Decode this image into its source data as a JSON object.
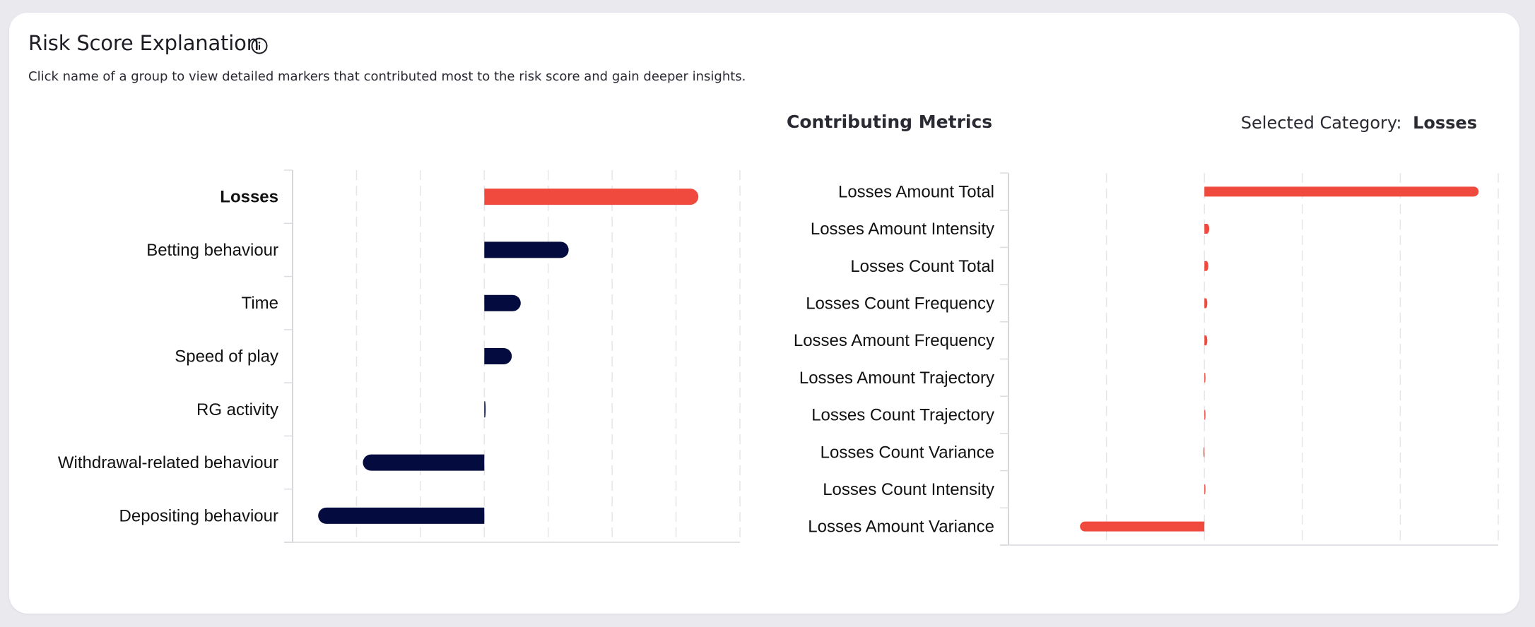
{
  "header": {
    "title": "Risk Score Explanation",
    "subtitle": "Click name of a group to view detailed markers that contributed most to the risk score and gain deeper insights."
  },
  "metrics_header": {
    "title": "Contributing Metrics",
    "selected_label": "Selected Category:",
    "selected_value": "Losses"
  },
  "colors": {
    "accent": "#ef4a3d",
    "navy": "#030b3f"
  },
  "chart_data": [
    {
      "type": "bar",
      "orientation": "horizontal",
      "title": "",
      "categories": [
        "Losses",
        "Betting behaviour",
        "Time",
        "Speed of play",
        "RG activity",
        "Withdrawal-related behaviour",
        "Depositing behaviour"
      ],
      "values": [
        3.35,
        1.32,
        0.57,
        0.43,
        0.02,
        -1.9,
        -2.6
      ],
      "xlim": [
        -3,
        4
      ],
      "selected": "Losses",
      "grid": true
    },
    {
      "type": "bar",
      "orientation": "horizontal",
      "title": "Contributing Metrics",
      "categories": [
        "Losses Amount Total",
        "Losses Amount Intensity",
        "Losses Count Total",
        "Losses Count Frequency",
        "Losses Amount Frequency",
        "Losses Amount Trajectory",
        "Losses Count Trajectory",
        "Losses Count Variance",
        "Losses Count Intensity",
        "Losses Amount Variance"
      ],
      "values": [
        2.8,
        0.05,
        0.04,
        0.03,
        0.03,
        0.01,
        0.0,
        -0.01,
        0.0,
        -1.27
      ],
      "xlim": [
        -2,
        3
      ],
      "grid": true
    }
  ]
}
